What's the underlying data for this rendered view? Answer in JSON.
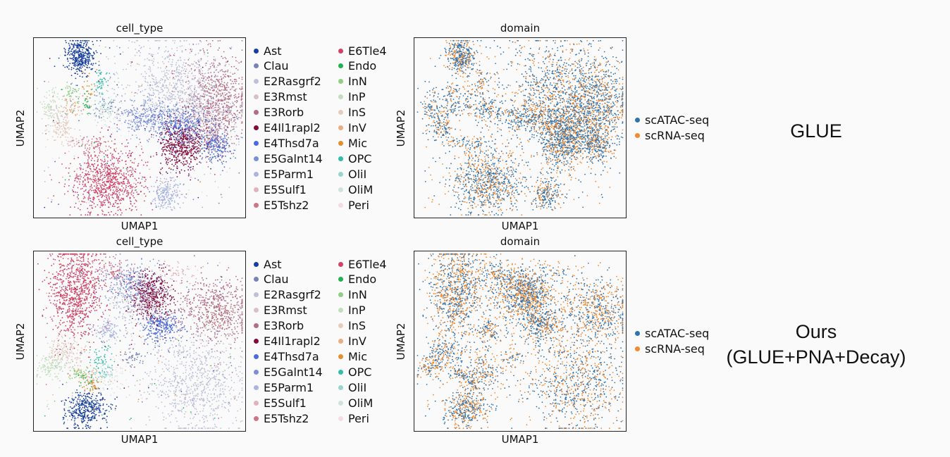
{
  "categories": [
    {
      "name": "Ast",
      "color": "#173f9d"
    },
    {
      "name": "Clau",
      "color": "#7684b6"
    },
    {
      "name": "E2Rasgrf2",
      "color": "#bdc0d8"
    },
    {
      "name": "E3Rmst",
      "color": "#d9c0c6"
    },
    {
      "name": "E3Rorb",
      "color": "#b36f82"
    },
    {
      "name": "E4Il1rapl2",
      "color": "#800c3c"
    },
    {
      "name": "E4Thsd7a",
      "color": "#4c6ad9"
    },
    {
      "name": "E5Galnt14",
      "color": "#7a8fdb"
    },
    {
      "name": "E5Parm1",
      "color": "#aab5e0"
    },
    {
      "name": "E5Sulf1",
      "color": "#e0b2bb"
    },
    {
      "name": "E5Tshz2",
      "color": "#ce7585"
    },
    {
      "name": "E6Tle4",
      "color": "#cf4466"
    },
    {
      "name": "Endo",
      "color": "#1fb350"
    },
    {
      "name": "InN",
      "color": "#8fcf82"
    },
    {
      "name": "InP",
      "color": "#c2dfbd"
    },
    {
      "name": "InS",
      "color": "#e5cdbc"
    },
    {
      "name": "InV",
      "color": "#e9ad80"
    },
    {
      "name": "Mic",
      "color": "#e2902e"
    },
    {
      "name": "OPC",
      "color": "#33bda8"
    },
    {
      "name": "OliI",
      "color": "#99d4cd"
    },
    {
      "name": "OliM",
      "color": "#cfe2dc"
    },
    {
      "name": "Peri",
      "color": "#f2dde4"
    }
  ],
  "domains": [
    {
      "name": "scATAC-seq",
      "color": "#2f73ad"
    },
    {
      "name": "scRNA-seq",
      "color": "#f28a30"
    }
  ],
  "rows": [
    {
      "method_lines": [
        "GLUE"
      ],
      "cell_type_panel": {
        "title": "cell_type",
        "xlabel": "UMAP1",
        "ylabel": "UMAP2"
      },
      "domain_panel": {
        "title": "domain",
        "xlabel": "UMAP1",
        "ylabel": "UMAP2"
      }
    },
    {
      "method_lines": [
        "Ours",
        "(GLUE+PNA+Decay)"
      ],
      "cell_type_panel": {
        "title": "cell_type",
        "xlabel": "UMAP1",
        "ylabel": "UMAP2"
      },
      "domain_panel": {
        "title": "domain",
        "xlabel": "UMAP1",
        "ylabel": "UMAP2"
      }
    }
  ],
  "chart_data": [
    {
      "type": "scatter",
      "title": "cell_type",
      "xlabel": "UMAP1",
      "ylabel": "UMAP2",
      "color_by": "cell_type",
      "method": "GLUE",
      "axis_ticks": false,
      "grid": false,
      "legend": "right, two columns"
    },
    {
      "type": "scatter",
      "title": "domain",
      "xlabel": "UMAP1",
      "ylabel": "UMAP2",
      "color_by": "domain",
      "method": "GLUE",
      "axis_ticks": false,
      "grid": false,
      "legend": "right"
    },
    {
      "type": "scatter",
      "title": "cell_type",
      "xlabel": "UMAP1",
      "ylabel": "UMAP2",
      "color_by": "cell_type",
      "method": "Ours (GLUE+PNA+Decay)",
      "axis_ticks": false,
      "grid": false,
      "legend": "right, two columns"
    },
    {
      "type": "scatter",
      "title": "domain",
      "xlabel": "UMAP1",
      "ylabel": "UMAP2",
      "color_by": "domain",
      "method": "Ours (GLUE+PNA+Decay)",
      "axis_ticks": false,
      "grid": false,
      "legend": "right"
    }
  ]
}
